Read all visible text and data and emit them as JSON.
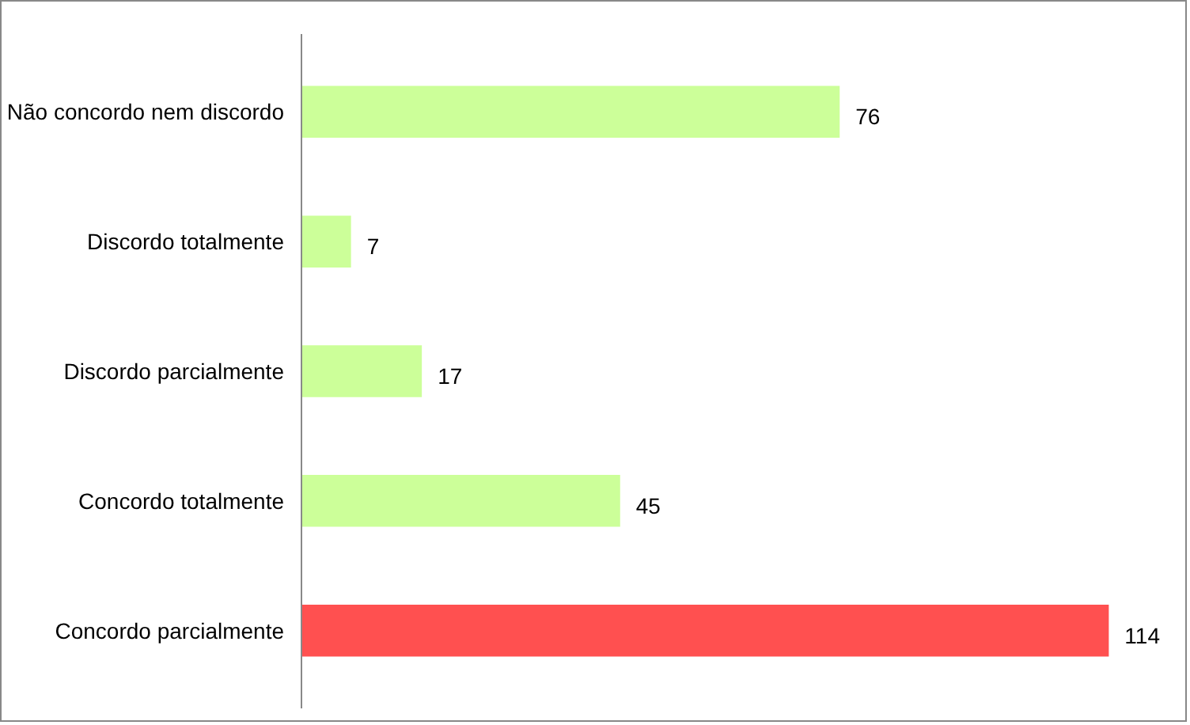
{
  "chart_data": {
    "type": "bar",
    "orientation": "horizontal",
    "categories": [
      "Não concordo nem discordo",
      "Discordo totalmente",
      "Discordo parcialmente",
      "Concordo totalmente",
      "Concordo parcialmente"
    ],
    "values": [
      76,
      7,
      17,
      45,
      114
    ],
    "colors": [
      "#ccff99",
      "#ccff99",
      "#ccff99",
      "#ccff99",
      "#ff5050"
    ],
    "data_labels": true,
    "grid": false
  }
}
